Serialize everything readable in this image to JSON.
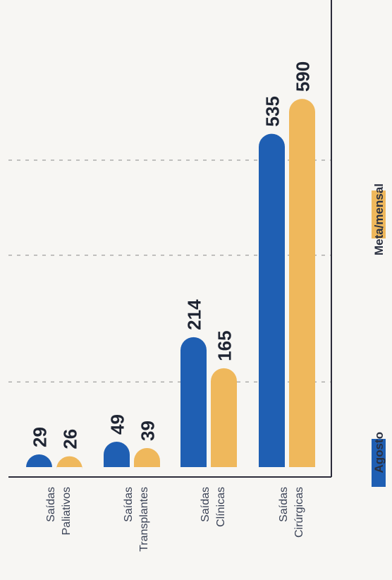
{
  "chart_data": {
    "type": "bar",
    "orientation": "rotated-90",
    "categories": [
      [
        "Saídas",
        "Paliativos"
      ],
      [
        "Saídas",
        "Transplantes"
      ],
      [
        "Saídas",
        "Clínicas"
      ],
      [
        "Saídas",
        "Cirúrgicas"
      ]
    ],
    "series": [
      {
        "name": "Agosto",
        "values": [
          29,
          49,
          214,
          535
        ],
        "color": "#1f5fb3"
      },
      {
        "name": "Meta/mensal",
        "values": [
          26,
          39,
          165,
          590
        ],
        "color": "#efb85c"
      }
    ],
    "ylim": [
      0,
      600
    ],
    "gridlines": [
      150,
      350,
      500
    ],
    "legend_position": "bottom-right",
    "grid": true
  }
}
